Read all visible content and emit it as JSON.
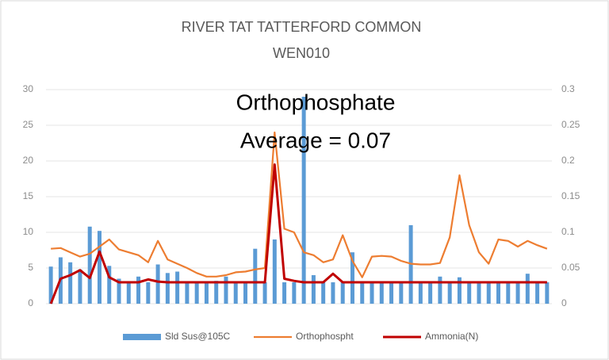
{
  "chart_data": {
    "type": "combo",
    "title": [
      "RIVER TAT TATTERFORD COMMON",
      "WEN010"
    ],
    "annotation": [
      "Orthophosphate",
      "Average = 0.07"
    ],
    "categories": [
      null,
      null,
      null,
      null,
      null,
      null,
      null,
      null,
      null,
      null,
      null,
      null,
      null,
      null,
      null,
      null,
      null,
      null,
      null,
      null,
      null,
      null,
      null,
      null,
      null,
      null,
      null,
      null,
      null,
      null,
      null,
      null,
      null,
      null,
      null,
      null,
      null,
      null,
      null,
      null,
      null,
      null,
      null,
      null,
      null,
      null,
      null,
      null,
      null,
      null,
      null,
      null
    ],
    "series": [
      {
        "name": "Sld Sus@105C",
        "type": "bar",
        "color": "#5b9bd5",
        "axis": "y",
        "values": [
          5.2,
          6.5,
          5.8,
          4.8,
          10.8,
          10.2,
          5.3,
          3.5,
          3,
          3.8,
          3,
          5.5,
          4.3,
          4.5,
          3,
          3,
          3,
          3.2,
          3.8,
          3,
          3,
          7.7,
          3,
          9,
          3,
          3,
          29,
          4,
          3,
          3,
          3,
          7.2,
          3,
          3,
          3,
          3,
          3,
          11,
          3,
          3,
          3.8,
          3,
          3.7,
          3,
          3,
          3,
          3,
          3,
          3,
          4.2,
          3,
          3
        ]
      },
      {
        "name": "Orthophospht",
        "type": "line",
        "color": "#ed7d31",
        "axis": "y2",
        "values": [
          0.077,
          0.078,
          0.072,
          0.066,
          0.07,
          0.08,
          0.09,
          0.076,
          0.072,
          0.068,
          0.058,
          0.088,
          0.062,
          0.056,
          0.05,
          0.043,
          0.038,
          0.038,
          0.04,
          0.044,
          0.045,
          0.048,
          0.05,
          0.24,
          0.105,
          0.1,
          0.072,
          0.068,
          0.058,
          0.062,
          0.096,
          0.06,
          0.037,
          0.066,
          0.067,
          0.066,
          0.06,
          0.056,
          0.055,
          0.055,
          0.057,
          0.093,
          0.18,
          0.11,
          0.072,
          0.056,
          0.09,
          0.088,
          0.08,
          0.088,
          0.082,
          0.077
        ]
      },
      {
        "name": "Ammonia(N)",
        "type": "line",
        "color": "#c00000",
        "axis": "y2",
        "values": [
          0,
          0.035,
          0.04,
          0.047,
          0.036,
          0.073,
          0.037,
          0.03,
          0.03,
          0.03,
          0.034,
          0.031,
          0.03,
          0.03,
          0.03,
          0.03,
          0.03,
          0.03,
          0.03,
          0.03,
          0.03,
          0.03,
          0.03,
          0.195,
          0.035,
          0.032,
          0.03,
          0.03,
          0.03,
          0.042,
          0.03,
          0.03,
          0.03,
          0.03,
          0.03,
          0.03,
          0.03,
          0.03,
          0.03,
          0.03,
          0.03,
          0.03,
          0.03,
          0.03,
          0.03,
          0.03,
          0.03,
          0.03,
          0.03,
          0.03,
          0.03,
          0.03
        ]
      }
    ],
    "ylim": [
      0,
      30
    ],
    "yticks": [
      0,
      5,
      10,
      15,
      20,
      25,
      30
    ],
    "y2lim": [
      0,
      0.3
    ],
    "y2ticks": [
      0,
      0.05,
      0.1,
      0.15,
      0.2,
      0.25,
      0.3
    ],
    "grid": true,
    "legend": "bottom"
  }
}
